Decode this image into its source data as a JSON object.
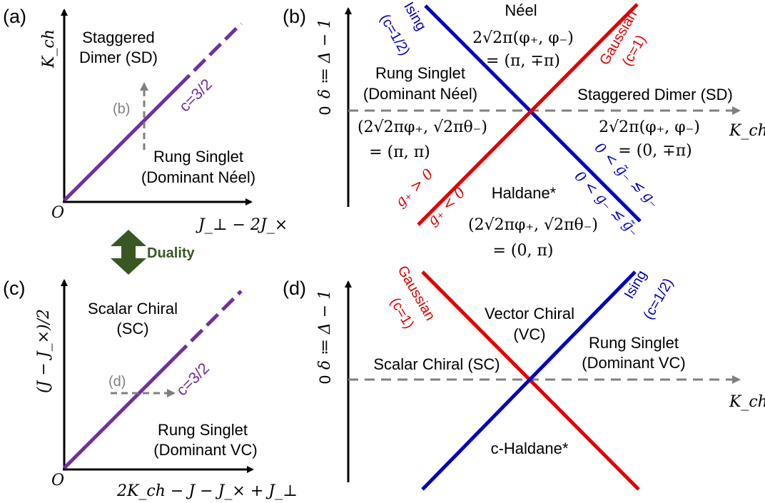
{
  "colors": {
    "axis": "#000000",
    "purple": "#7030A0",
    "gray": "#808080",
    "red": "#E00000",
    "blue": "#0000C0",
    "green": "#385723"
  },
  "panel_a": {
    "label": "(a)",
    "y_axis": "K_ch",
    "x_axis": "J_⊥ − 2J_×",
    "origin": "O",
    "phase_upper_line1": "Staggered",
    "phase_upper_line2": "Dimer (SD)",
    "phase_lower_line1": "Rung Singlet",
    "phase_lower_line2": "(Dominant Néel)",
    "line_label": "c=3/2",
    "arrow_label": "(b)"
  },
  "duality": {
    "label": "Duality"
  },
  "panel_c": {
    "label": "(c)",
    "y_axis": "(J − J_×)/2",
    "x_axis": "2K_ch − J − J_× + J_⊥",
    "origin": "O",
    "phase_upper_line1": "Scalar Chiral",
    "phase_upper_line2": "(SC)",
    "phase_lower_line1": "Rung Singlet",
    "phase_lower_line2": "(Dominant VC)",
    "line_label": "c=3/2",
    "arrow_label": "(d)"
  },
  "panel_b": {
    "label": "(b)",
    "y_axis": "δ ≔ Δ − 1",
    "x_axis": "K_ch",
    "zero": "0",
    "top_title": "Néel",
    "top_eq1": "2√2π(φ₊, φ₋)",
    "top_eq2": "= (π, ∓π)",
    "left_title_line1": "Rung Singlet",
    "left_title_line2": "(Dominant Néel)",
    "left_eq1": "(2√2πφ₊, √2πθ₋)",
    "left_eq2": "= (π, π)",
    "right_title": "Staggered Dimer (SD)",
    "right_eq1": "2√2π(φ₊, φ₋)",
    "right_eq2": "= (0, ∓π)",
    "bottom_title": "Haldane*",
    "bottom_eq1": "(2√2πφ₊, √2πθ₋)",
    "bottom_eq2": "= (0, π)",
    "blue_line_label1": "Ising",
    "blue_line_label2": "(c=1/2)",
    "red_line_label1": "Gaussian",
    "red_line_label2": "(c=1)",
    "red_cond_upper": "g₊ > 0",
    "red_cond_lower": "g₊ < 0",
    "blue_cond_upper": "0 < g̃₋ ≲ g₋",
    "blue_cond_lower": "0 < g₋ ≲ g̃₋"
  },
  "panel_d": {
    "label": "(d)",
    "y_axis": "δ ≔ Δ − 1",
    "x_axis": "K_ch",
    "zero": "0",
    "top_title_line1": "Vector Chiral",
    "top_title_line2": "(VC)",
    "left_title": "Scalar Chiral (SC)",
    "right_title_line1": "Rung Singlet",
    "right_title_line2": "(Dominant VC)",
    "bottom_title": "c-Haldane*",
    "red_line_label1": "Gaussian",
    "red_line_label2": "(c=1)",
    "blue_line_label1": "Ising",
    "blue_line_label2": "(c=1/2)"
  }
}
